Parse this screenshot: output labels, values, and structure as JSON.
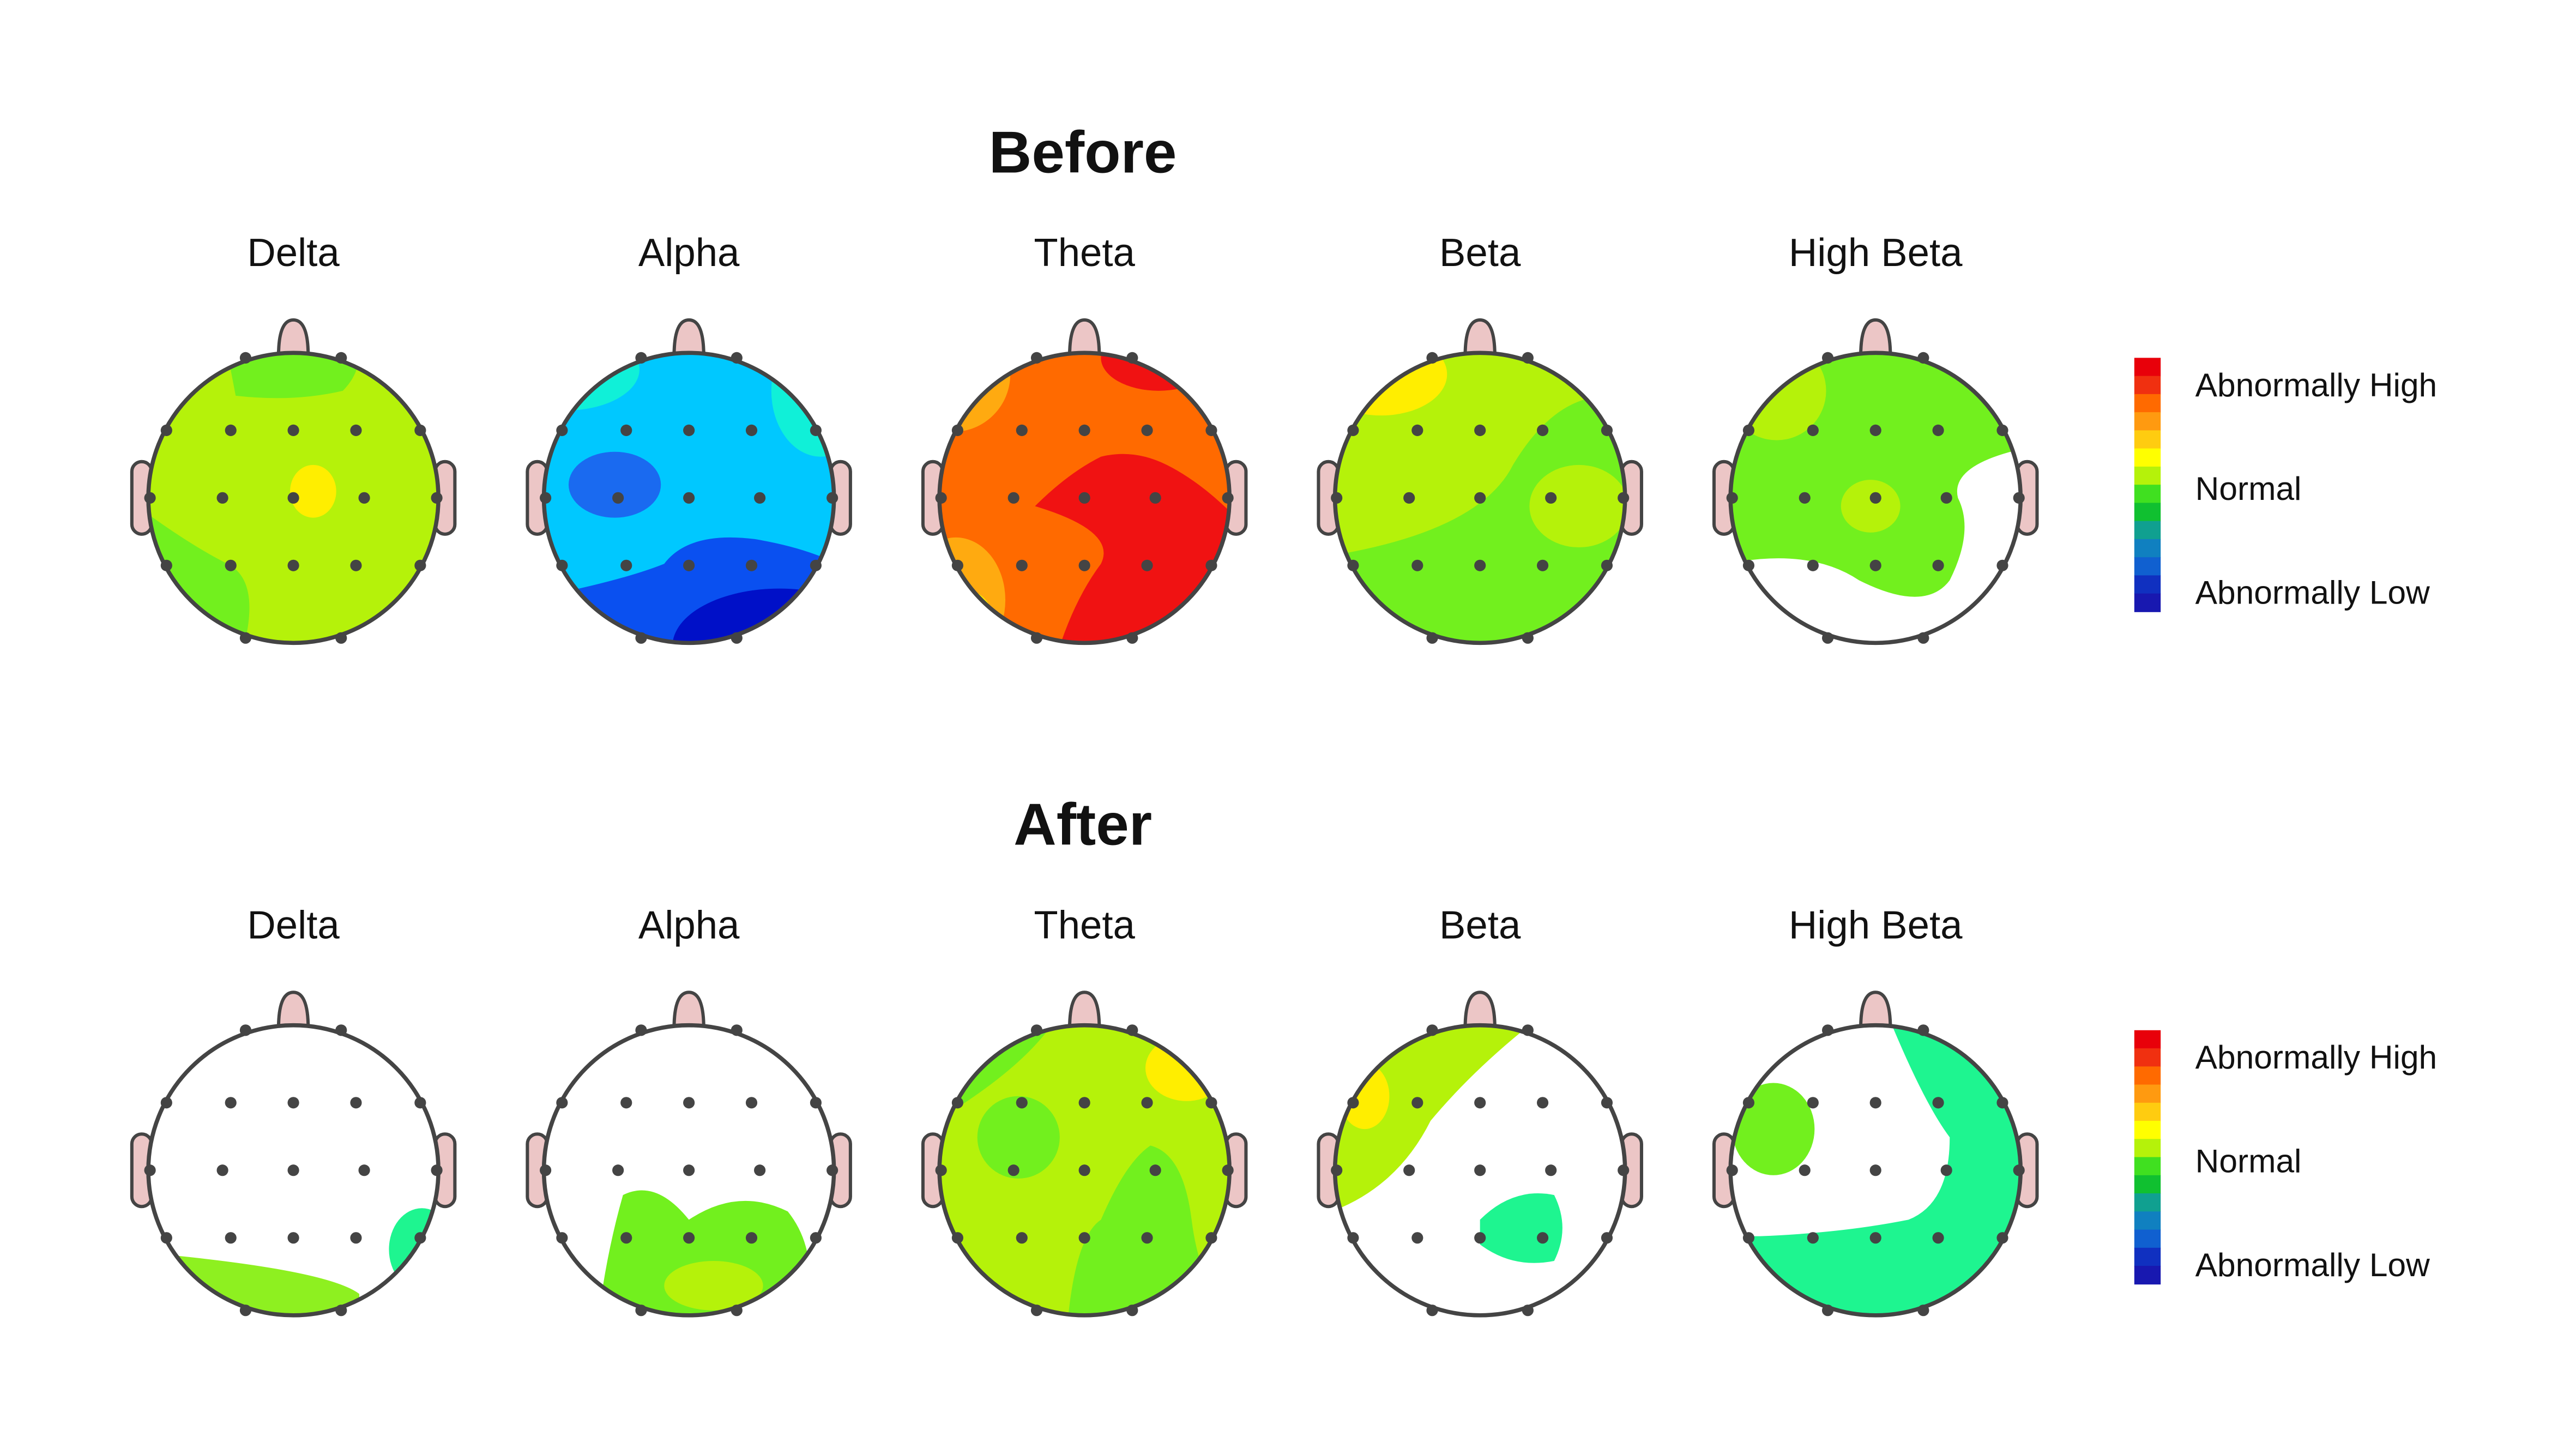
{
  "sections": [
    {
      "title": "Before",
      "maps": [
        "Delta",
        "Alpha",
        "Theta",
        "Beta",
        "High Beta"
      ],
      "legend": [
        "Abnormally High",
        "Normal",
        "Abnormally Low"
      ]
    },
    {
      "title": "After",
      "maps": [
        "Delta",
        "Alpha",
        "Theta",
        "Beta",
        "High Beta"
      ],
      "legend": [
        "Abnormally High",
        "Normal",
        "Abnormally Low"
      ]
    }
  ]
}
